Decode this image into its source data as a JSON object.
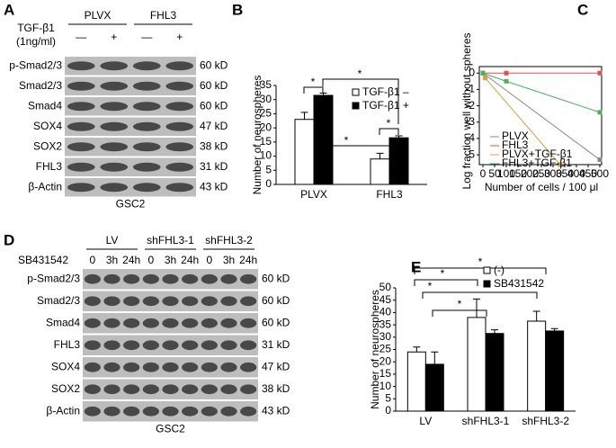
{
  "panels": [
    "A",
    "B",
    "C",
    "D",
    "E"
  ],
  "blot_a": {
    "groups": [
      "PLVX",
      "FHL3"
    ],
    "treatment": "TGF-β1",
    "treatment_dose": "(1ng/ml)",
    "lanes": [
      "—",
      "+",
      "—",
      "+"
    ],
    "rows": [
      {
        "name": "p-Smad2/3",
        "size": "60 kD"
      },
      {
        "name": "Smad2/3",
        "size": "60 kD"
      },
      {
        "name": "Smad4",
        "size": "60 kD"
      },
      {
        "name": "SOX4",
        "size": "47 kD"
      },
      {
        "name": "SOX2",
        "size": "38 kD"
      },
      {
        "name": "FHL3",
        "size": "31 kD"
      },
      {
        "name": "β-Actin",
        "size": "43 kD"
      }
    ],
    "cell_line": "GSC2"
  },
  "blot_d": {
    "groups": [
      "LV",
      "shFHL3-1",
      "shFHL3-2"
    ],
    "treatment": "SB431542",
    "lanes": [
      "0",
      "3h",
      "24h",
      "0",
      "3h",
      "24h",
      "0",
      "3h",
      "24h"
    ],
    "rows": [
      {
        "name": "p-Smad2/3",
        "size": "60 kD"
      },
      {
        "name": "Smad2/3",
        "size": "60 kD"
      },
      {
        "name": "Smad4",
        "size": "60 kD"
      },
      {
        "name": "FHL3",
        "size": "31 kD"
      },
      {
        "name": "SOX4",
        "size": "47 kD"
      },
      {
        "name": "SOX2",
        "size": "38 kD"
      },
      {
        "name": "β-Actin",
        "size": "43 kD"
      }
    ],
    "cell_line": "GSC2"
  },
  "chart_data": [
    {
      "type": "bar",
      "y_label": "Number of neurospheres",
      "categories": [
        "PLVX",
        "FHL3"
      ],
      "series": [
        {
          "name": "TGF-β1 –",
          "color": "#ffffff",
          "values": [
            23,
            9
          ],
          "errors": [
            2.5,
            2
          ]
        },
        {
          "name": "TGF-β1 +",
          "color": "#000000",
          "values": [
            31.5,
            16.5
          ],
          "errors": [
            0.8,
            0.7
          ]
        }
      ],
      "ylim": [
        0,
        35
      ],
      "yticks": [
        0,
        5,
        10,
        15,
        20,
        25,
        30,
        35
      ],
      "annotations": [
        "*",
        "*",
        "*",
        "*"
      ]
    },
    {
      "type": "line",
      "y_label": "Log fraction well without spheres",
      "x_label": "Number of cells / 100 μl",
      "xlim": [
        0,
        500
      ],
      "xticks": [
        0,
        50,
        100,
        150,
        200,
        250,
        300,
        350,
        400,
        450,
        500
      ],
      "ylim": [
        -5.6,
        0.4
      ],
      "yticks": [
        0,
        -1,
        -2,
        -3,
        -4,
        -5
      ],
      "series": [
        {
          "name": "PLVX",
          "color": "#888888",
          "x": [
            0,
            500
          ],
          "values": [
            0,
            -5.3
          ]
        },
        {
          "name": "FHL3",
          "color": "#e05050",
          "x": [
            0,
            100,
            500
          ],
          "values": [
            0,
            0,
            0
          ]
        },
        {
          "name": "PLVX+TGF-β1",
          "color": "#d9a040",
          "x": [
            0,
            10,
            330
          ],
          "values": [
            0,
            -0.3,
            -5.6
          ]
        },
        {
          "name": "FHL3+TGF-β1",
          "color": "#4cb060",
          "x": [
            0,
            100,
            500
          ],
          "values": [
            0,
            -0.5,
            -2.4
          ]
        }
      ]
    },
    {
      "type": "bar",
      "y_label": "Number of neurospheres",
      "categories": [
        "LV",
        "shFHL3-1",
        "shFHL3-2"
      ],
      "series": [
        {
          "name": "(-)",
          "color": "#ffffff",
          "values": [
            24,
            38,
            36.5
          ],
          "errors": [
            2,
            7.5,
            4
          ]
        },
        {
          "name": "SB431542",
          "color": "#000000",
          "values": [
            19,
            31.5,
            32.5
          ],
          "errors": [
            5,
            1.5,
            1
          ]
        }
      ],
      "ylim": [
        0,
        50
      ],
      "yticks": [
        0,
        5,
        10,
        15,
        20,
        25,
        30,
        35,
        40,
        45,
        50
      ],
      "annotations": [
        "*",
        "*",
        "*",
        "*"
      ]
    }
  ]
}
